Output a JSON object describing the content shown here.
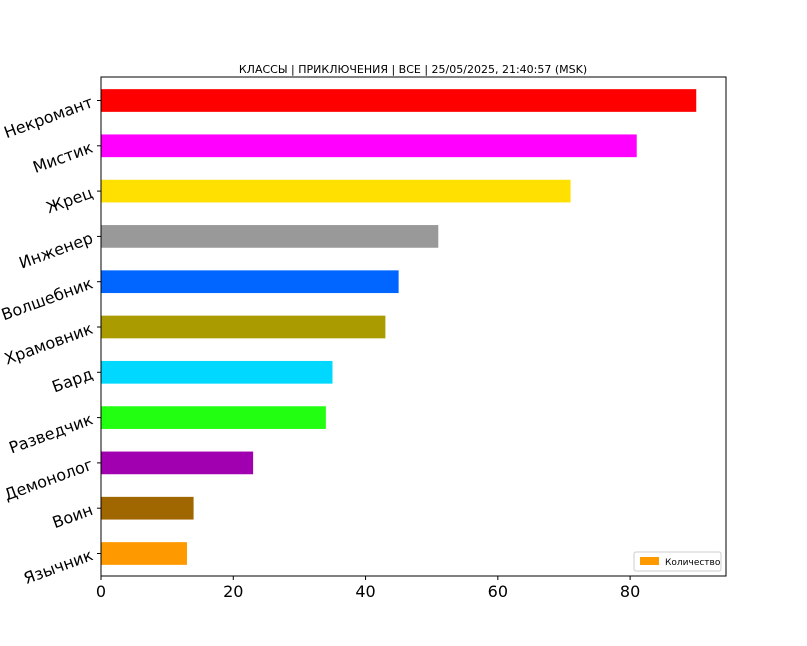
{
  "chart_data": {
    "type": "bar",
    "orientation": "horizontal",
    "title": "КЛАССЫ | ПРИКЛЮЧЕНИЯ | ВСЕ | 25/05/2025, 21:40:57 (MSK)",
    "xlabel": "",
    "ylabel": "",
    "xlim": [
      0,
      94.5
    ],
    "xticks": [
      0,
      20,
      40,
      60,
      80
    ],
    "grid": false,
    "legend": {
      "label": "Количество",
      "position": "bottom-right",
      "color": "#ff9900"
    },
    "categories": [
      "Некромант",
      "Мистик",
      "Жрец",
      "Инженер",
      "Волшебник",
      "Храмовник",
      "Бард",
      "Разведчик",
      "Демонолог",
      "Воин",
      "Язычник"
    ],
    "values": [
      90,
      81,
      71,
      51,
      45,
      43,
      35,
      34,
      23,
      14,
      13
    ],
    "colors": [
      "#ff0000",
      "#ff00ff",
      "#ffe000",
      "#999999",
      "#0066ff",
      "#aa9c00",
      "#00d8ff",
      "#22ff11",
      "#a000b0",
      "#a06600",
      "#ff9900"
    ]
  }
}
